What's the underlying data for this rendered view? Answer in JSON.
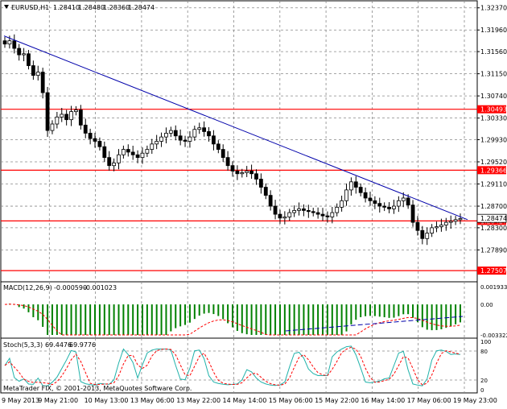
{
  "main": {
    "symbol": "EURUSD,H1",
    "ohlc": [
      "1.28410",
      "1.28480",
      "1.28360",
      "1.28474"
    ]
  },
  "macd": {
    "label": "MACD(12,26,9)",
    "values": [
      "-0.000590",
      "-0.001023"
    ]
  },
  "stoch": {
    "label": "Stoch(5,3,3)",
    "values": [
      "69.4476",
      "69.9776"
    ]
  },
  "copyright": "MetaTrader FIX, © 2001-2013, MetaQuotes Software Corp.",
  "colors": {
    "up_body": "#ffffff",
    "down_body": "#000000",
    "hline": "#ff0000",
    "trendline": "#0000aa",
    "macd_hist": "#008000",
    "signal": "#ff0000",
    "stoch_main": "#20b2aa",
    "stoch_signal": "#ff0000"
  },
  "chart_data": [
    {
      "type": "candlestick",
      "title": "EURUSD,H1",
      "price_ticks": [
        "1.32370",
        "1.31960",
        "1.31560",
        "1.31150",
        "1.30740",
        "1.30330",
        "1.29930",
        "1.29520",
        "1.29110",
        "1.28700",
        "1.28300",
        "1.27890"
      ],
      "time_ticks": [
        "9 May 2013",
        "9 May 21:00",
        "10 May 13:00",
        "13 May 06:00",
        "13 May 22:00",
        "14 May 14:00",
        "15 May 06:00",
        "15 May 22:00",
        "16 May 14:00",
        "17 May 06:00",
        "19 May 23:00"
      ],
      "ylim": [
        1.273,
        1.325
      ],
      "horizontal_levels": [
        {
          "label": "1.30493",
          "value": 1.30493
        },
        {
          "label": "1.29366",
          "value": 1.29366
        },
        {
          "label": "1.28427",
          "value": 1.28427
        },
        {
          "label": "1.27507",
          "value": 1.27507
        }
      ],
      "current_price": "1.28474",
      "trendline": {
        "from": [
          0,
          1.3185
        ],
        "to": [
          1,
          1.2845
        ]
      },
      "closes": [
        1.317,
        1.3176,
        1.3162,
        1.315,
        1.3152,
        1.313,
        1.3112,
        1.3118,
        1.308,
        1.301,
        1.3022,
        1.3035,
        1.304,
        1.303,
        1.3045,
        1.3048,
        1.302,
        1.3005,
        1.2995,
        1.299,
        1.298,
        1.296,
        1.2945,
        1.295,
        1.2965,
        1.2975,
        1.297,
        1.2965,
        1.296,
        1.2968,
        1.2975,
        1.2985,
        1.299,
        1.2998,
        1.3005,
        1.301,
        1.3,
        1.2992,
        1.299,
        1.2998,
        1.3012,
        1.3015,
        1.3008,
        1.3,
        1.2985,
        1.2975,
        1.296,
        1.2945,
        1.2935,
        1.293,
        1.2932,
        1.2935,
        1.293,
        1.292,
        1.2905,
        1.289,
        1.287,
        1.2855,
        1.2848,
        1.285,
        1.2858,
        1.2862,
        1.2865,
        1.2862,
        1.286,
        1.2858,
        1.2855,
        1.2852,
        1.285,
        1.2858,
        1.2868,
        1.288,
        1.29,
        1.2915,
        1.2905,
        1.2895,
        1.2885,
        1.288,
        1.2875,
        1.287,
        1.2868,
        1.2865,
        1.287,
        1.288,
        1.2885,
        1.2872,
        1.284,
        1.2825,
        1.281,
        1.282,
        1.283,
        1.2832,
        1.2835,
        1.284,
        1.2842,
        1.2845,
        1.2847
      ]
    },
    {
      "type": "macd",
      "title": "MACD(12,26,9)",
      "ticks": [
        "0.001933",
        "0.00",
        "-0.003322"
      ],
      "ylim": [
        -0.003322,
        0.001933
      ]
    },
    {
      "type": "stochastic",
      "title": "Stoch(5,3,3)",
      "ticks": [
        "100",
        "80",
        "20",
        "0"
      ],
      "ylim": [
        0,
        100
      ],
      "levels": [
        80,
        20
      ]
    }
  ]
}
